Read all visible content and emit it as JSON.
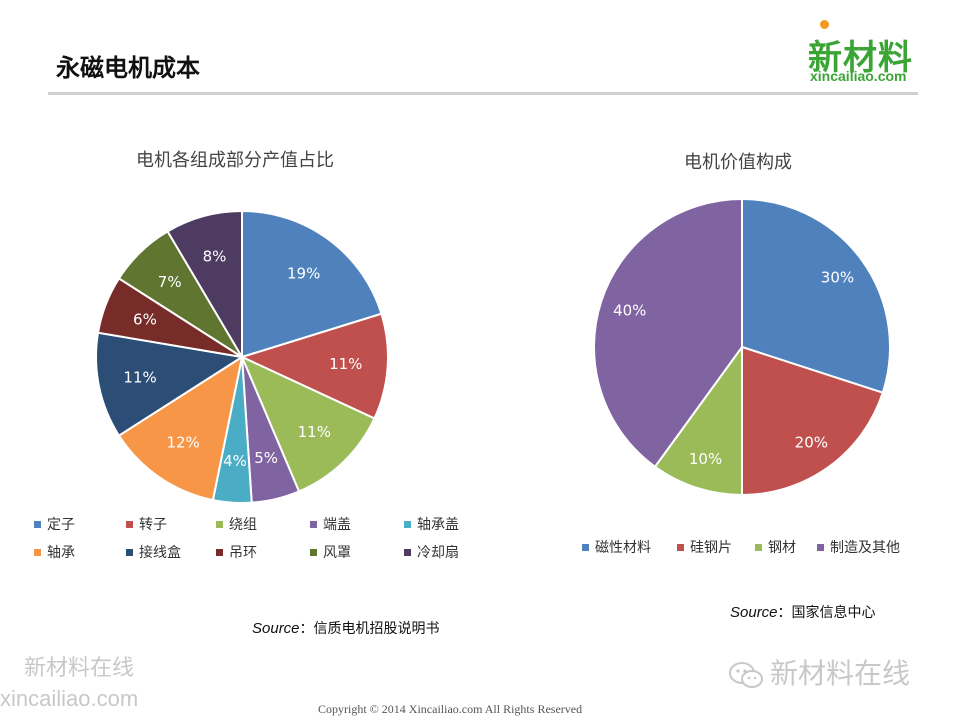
{
  "page": {
    "title": "永磁电机成本",
    "copyright": "Copyright © 2014   Xincailiao.com    All Rights Reserved",
    "watermark_left_line1": "新材料在线",
    "watermark_left_line2": "xincailiao.com",
    "watermark_right": "新材料在线"
  },
  "logo": {
    "main": "新材料",
    "sub": "xincailiao.com",
    "green": "#3aa535",
    "orange": "#f39a1e"
  },
  "chart_data": [
    {
      "type": "pie",
      "title": "电机各组成部分产值占比",
      "categories": [
        "定子",
        "转子",
        "绕组",
        "端盖",
        "轴承盖",
        "轴承",
        "接线盒",
        "吊环",
        "风罩",
        "冷却扇"
      ],
      "values": [
        19,
        11,
        11,
        5,
        4,
        12,
        11,
        6,
        7,
        8
      ],
      "labels": [
        "19%",
        "11%",
        "11%",
        "5%",
        "4%",
        "12%",
        "11%",
        "6%",
        "7%",
        "8%"
      ],
      "colors": [
        "#4f81bd",
        "#c0504d",
        "#9bbb59",
        "#8064a2",
        "#4bacc6",
        "#f79646",
        "#2c4d75",
        "#772c2a",
        "#5f7530",
        "#4d3b62"
      ],
      "legend": "bottom",
      "source_label": "Source",
      "source_text": "：信质电机招股说明书"
    },
    {
      "type": "pie",
      "title": "电机价值构成",
      "categories": [
        "磁性材料",
        "硅钢片",
        "钢材",
        "制造及其他"
      ],
      "values": [
        30,
        20,
        10,
        40
      ],
      "labels": [
        "30%",
        "20%",
        "10%",
        "40%"
      ],
      "colors": [
        "#4f81bd",
        "#c0504d",
        "#9bbb59",
        "#8064a2"
      ],
      "legend": "bottom",
      "source_label": "Source",
      "source_text": "：国家信息中心"
    }
  ]
}
